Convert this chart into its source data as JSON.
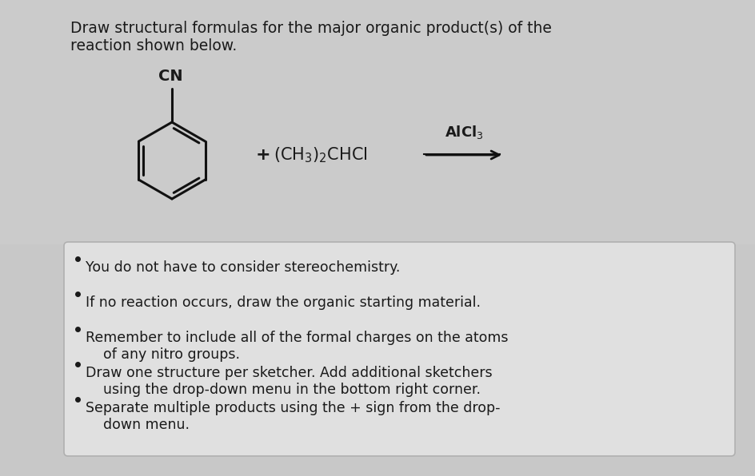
{
  "title_line1": "Draw structural formulas for the major organic product(s) of the",
  "title_line2": "reaction shown below.",
  "bg_color": "#c8c8c8",
  "top_bg": "#d0d0d0",
  "box_bg": "#e8e8e8",
  "text_color": "#1a1a1a",
  "bullet_points": [
    "You do not have to consider stereochemistry.",
    "If no reaction occurs, draw the organic starting material.",
    "Remember to include all of the formal charges on the atoms\n    of any nitro groups.",
    "Draw one structure per sketcher. Add additional sketchers\n    using the drop-down menu in the bottom right corner.",
    "Separate multiple products using the + sign from the drop-\n    down menu."
  ],
  "reagent_text": "+ (CH₃)₂CHCI",
  "catalyst_text": "AlCl₃",
  "cn_label": "CN",
  "figsize": [
    9.44,
    5.96
  ],
  "dpi": 100
}
